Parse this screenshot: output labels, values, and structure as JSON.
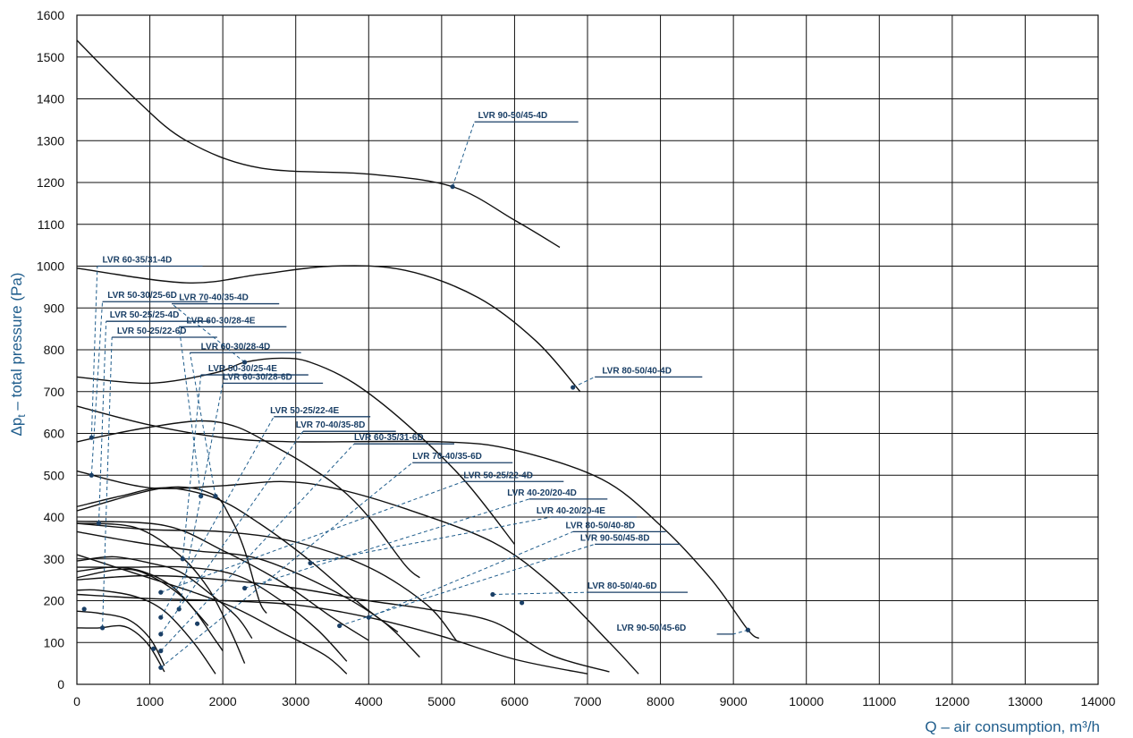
{
  "chart_data": {
    "type": "line",
    "xlabel": "Q – air consumption, m³/h",
    "ylabel_main": "Δp",
    "ylabel_sub": "t",
    "ylabel_rest": " – total pressure (Pa)",
    "xlim": [
      0,
      14000
    ],
    "ylim": [
      0,
      1600
    ],
    "x_ticks": [
      "0",
      "1000",
      "2000",
      "3000",
      "4000",
      "5000",
      "6000",
      "7000",
      "8000",
      "9000",
      "10000",
      "11000",
      "12000",
      "13000",
      "14000"
    ],
    "y_ticks": [
      "0",
      "100",
      "200",
      "300",
      "400",
      "500",
      "600",
      "700",
      "800",
      "900",
      "1000",
      "1100",
      "1200",
      "1300",
      "1400",
      "1500",
      "1600"
    ],
    "grid": true,
    "colors": {
      "curve": "#111111",
      "label": "#1a3f66",
      "leader": "#1f5d8c",
      "grid": "#111111"
    },
    "series": [
      {
        "name": "LVR 90-50/45-4D",
        "points": [
          [
            0,
            1540
          ],
          [
            800,
            1400
          ],
          [
            1500,
            1300
          ],
          [
            2500,
            1235
          ],
          [
            4000,
            1220
          ],
          [
            5150,
            1190
          ],
          [
            6000,
            1110
          ],
          [
            6620,
            1045
          ]
        ]
      },
      {
        "name": "LVR 80-50/40-4D",
        "points": [
          [
            0,
            995
          ],
          [
            1500,
            960
          ],
          [
            2500,
            980
          ],
          [
            3500,
            1000
          ],
          [
            4500,
            990
          ],
          [
            5500,
            925
          ],
          [
            6300,
            820
          ],
          [
            6900,
            700
          ]
        ]
      },
      {
        "name": "LVR 70-40/35-4D",
        "points": [
          [
            0,
            735
          ],
          [
            1000,
            720
          ],
          [
            1900,
            745
          ],
          [
            2300,
            770
          ],
          [
            2800,
            780
          ],
          [
            3200,
            770
          ],
          [
            3800,
            720
          ],
          [
            4500,
            625
          ],
          [
            5300,
            490
          ],
          [
            6000,
            335
          ]
        ]
      },
      {
        "name": "LVR 60-35/31-4D",
        "points": [
          [
            0,
            580
          ],
          [
            400,
            595
          ],
          [
            1000,
            615
          ],
          [
            1700,
            630
          ],
          [
            2200,
            615
          ],
          [
            2700,
            570
          ],
          [
            3100,
            530
          ],
          [
            3600,
            470
          ],
          [
            4000,
            400
          ],
          [
            4500,
            285
          ],
          [
            4700,
            255
          ]
        ]
      },
      {
        "name": "LVR 60-35/31-6D",
        "points": [
          [
            0,
            665
          ],
          [
            1000,
            620
          ],
          [
            2000,
            590
          ],
          [
            3000,
            580
          ],
          [
            5000,
            580
          ],
          [
            6000,
            560
          ],
          [
            7200,
            490
          ],
          [
            8000,
            380
          ],
          [
            8700,
            250
          ],
          [
            9200,
            130
          ],
          [
            9350,
            110
          ]
        ]
      },
      {
        "name": "LVR 70-40/35-6D",
        "points": [
          [
            0,
            510
          ],
          [
            1000,
            470
          ],
          [
            2000,
            475
          ],
          [
            2800,
            485
          ],
          [
            3500,
            470
          ],
          [
            4500,
            420
          ],
          [
            5700,
            340
          ],
          [
            6500,
            240
          ],
          [
            7300,
            100
          ],
          [
            7700,
            25
          ]
        ]
      },
      {
        "name": "LVR 50-30/25-6D",
        "points": [
          [
            0,
            415
          ],
          [
            1200,
            470
          ],
          [
            1850,
            455
          ],
          [
            2100,
            400
          ],
          [
            2300,
            320
          ],
          [
            2500,
            200
          ],
          [
            2600,
            170
          ]
        ]
      },
      {
        "name": "LVR 50-30/25-4E",
        "points": [
          [
            0,
            425
          ],
          [
            600,
            450
          ],
          [
            1200,
            470
          ],
          [
            1900,
            445
          ],
          [
            2500,
            385
          ],
          [
            3200,
            295
          ],
          [
            3900,
            190
          ],
          [
            4400,
            125
          ]
        ]
      },
      {
        "name": "LVR 50-25/25-4D",
        "points": [
          [
            0,
            385
          ],
          [
            800,
            375
          ],
          [
            1400,
            310
          ],
          [
            1800,
            230
          ],
          [
            2100,
            130
          ],
          [
            2300,
            50
          ]
        ]
      },
      {
        "name": "LVR 50-25/22-6D",
        "points": [
          [
            0,
            135
          ],
          [
            300,
            135
          ],
          [
            600,
            140
          ],
          [
            800,
            125
          ],
          [
            1000,
            90
          ],
          [
            1200,
            30
          ]
        ]
      },
      {
        "name": "LVR 60-30/28-4E",
        "points": [
          [
            0,
            390
          ],
          [
            1200,
            380
          ],
          [
            2000,
            320
          ],
          [
            2800,
            245
          ],
          [
            3500,
            160
          ],
          [
            4000,
            105
          ]
        ]
      },
      {
        "name": "LVR 60-30/28-4D",
        "points": [
          [
            0,
            385
          ],
          [
            1000,
            370
          ],
          [
            2000,
            365
          ],
          [
            3000,
            340
          ],
          [
            4000,
            280
          ],
          [
            4800,
            190
          ],
          [
            5200,
            105
          ]
        ]
      },
      {
        "name": "LVR 60-30/28-6D",
        "points": [
          [
            0,
            295
          ],
          [
            500,
            305
          ],
          [
            1000,
            290
          ],
          [
            1400,
            270
          ],
          [
            1800,
            220
          ],
          [
            2200,
            160
          ],
          [
            2400,
            110
          ]
        ]
      },
      {
        "name": "LVR 50-25/22-4E",
        "points": [
          [
            0,
            310
          ],
          [
            800,
            265
          ],
          [
            1600,
            220
          ],
          [
            2200,
            180
          ],
          [
            2800,
            125
          ],
          [
            3400,
            70
          ],
          [
            3700,
            25
          ]
        ]
      },
      {
        "name": "LVR 70-40/35-8D",
        "points": [
          [
            0,
            365
          ],
          [
            800,
            340
          ],
          [
            1600,
            320
          ],
          [
            2500,
            300
          ],
          [
            3500,
            225
          ],
          [
            4200,
            150
          ],
          [
            4700,
            65
          ]
        ]
      },
      {
        "name": "LVR 50-25/22-4D",
        "points": [
          [
            0,
            280
          ],
          [
            800,
            280
          ],
          [
            1500,
            280
          ],
          [
            2200,
            260
          ],
          [
            2800,
            200
          ],
          [
            3300,
            130
          ],
          [
            3700,
            55
          ]
        ]
      },
      {
        "name": "LVR 40-20/20-4D",
        "points": [
          [
            0,
            270
          ],
          [
            500,
            280
          ],
          [
            900,
            270
          ],
          [
            1300,
            235
          ],
          [
            1600,
            180
          ],
          [
            1800,
            140
          ]
        ]
      },
      {
        "name": "LVR 40-20/20-4E",
        "points": [
          [
            0,
            255
          ],
          [
            600,
            275
          ],
          [
            1000,
            260
          ],
          [
            1500,
            200
          ],
          [
            1900,
            105
          ],
          [
            2000,
            80
          ]
        ]
      },
      {
        "name": "LVR 80-50/40-8D",
        "points": [
          [
            0,
            215
          ],
          [
            1000,
            205
          ],
          [
            2000,
            200
          ],
          [
            3000,
            190
          ],
          [
            4000,
            160
          ],
          [
            5000,
            115
          ],
          [
            6000,
            60
          ],
          [
            7000,
            25
          ]
        ]
      },
      {
        "name": "LVR 90-50/45-8D",
        "points": [
          [
            0,
            250
          ],
          [
            1000,
            260
          ],
          [
            2000,
            250
          ],
          [
            3000,
            230
          ],
          [
            4000,
            200
          ],
          [
            4800,
            180
          ],
          [
            5700,
            150
          ],
          [
            6500,
            70
          ],
          [
            7300,
            30
          ]
        ]
      },
      {
        "name": "LVR 80-50/40-6D",
        "points": [
          [
            0,
            225
          ],
          [
            300,
            225
          ],
          [
            800,
            210
          ],
          [
            1200,
            175
          ],
          [
            1600,
            100
          ],
          [
            1900,
            25
          ]
        ]
      },
      {
        "name": "LVR 90-50/45-6D",
        "points": [
          [
            0,
            175
          ],
          [
            300,
            170
          ],
          [
            700,
            155
          ],
          [
            1000,
            110
          ],
          [
            1200,
            45
          ]
        ]
      }
    ],
    "annotations": [
      {
        "text": "LVR 90-50/45-4D",
        "line_y": 1345,
        "x1": 5400,
        "x2": 7000,
        "text_x": 5500,
        "anchor": [
          5150,
          1190
        ],
        "elbow": [
          5450,
          1345
        ]
      },
      {
        "text": "LVR 60-35/31-4D",
        "line_y": 1000,
        "x1": 2800,
        "x2": 3000,
        "text_x": 350,
        "anchor": [
          200,
          590
        ],
        "elbow": [
          280,
          1000
        ]
      },
      {
        "text": "LVR 50-30/25-6D",
        "line_y": 915,
        "x1": 2900,
        "x2": 3000,
        "text_x": 420,
        "anchor": [
          200,
          500
        ],
        "elbow": [
          350,
          915
        ]
      },
      {
        "text": "LVR 50-25/25-4D",
        "line_y": 868,
        "x1": 2900,
        "x2": 3000,
        "text_x": 450,
        "anchor": [
          300,
          385
        ],
        "elbow": [
          400,
          868
        ]
      },
      {
        "text": "LVR 50-25/22-6D",
        "line_y": 830,
        "x1": 2900,
        "x2": 3000,
        "text_x": 550,
        "anchor": [
          350,
          135
        ],
        "elbow": [
          480,
          830
        ]
      },
      {
        "text": "LVR 70-40/35-4D",
        "line_y": 910,
        "x1": 4000,
        "x2": 4000,
        "text_x": 1400,
        "anchor": [
          2300,
          770
        ],
        "elbow": [
          1300,
          910
        ]
      },
      {
        "text": "LVR 60-30/28-4E",
        "line_y": 855,
        "x1": 4000,
        "x2": 4200,
        "text_x": 1500,
        "anchor": [
          1700,
          450
        ],
        "elbow": [
          1400,
          855
        ]
      },
      {
        "text": "LVR 60-30/28-4D",
        "line_y": 793,
        "x1": 4000,
        "x2": 4400,
        "text_x": 1700,
        "anchor": [
          1900,
          450
        ],
        "elbow": [
          1550,
          793
        ]
      },
      {
        "text": "LVR 50-30/25-4E",
        "line_y": 740,
        "x1": 4000,
        "x2": 4700,
        "text_x": 1800,
        "anchor": [
          1450,
          300
        ],
        "elbow": [
          1700,
          740
        ]
      },
      {
        "text": "LVR 60-30/28-6D",
        "line_y": 720,
        "x1": 4000,
        "x2": 5000,
        "text_x": 2000,
        "anchor": [
          1400,
          180
        ],
        "elbow": [
          2000,
          720
        ]
      },
      {
        "text": "LVR 50-25/22-4E",
        "line_y": 640,
        "x1": 4800,
        "x2": 5500,
        "text_x": 2650,
        "anchor": [
          1150,
          160
        ],
        "elbow": [
          2700,
          640
        ]
      },
      {
        "text": "LVR 70-40/35-8D",
        "line_y": 605,
        "x1": 5200,
        "x2": 5700,
        "text_x": 3000,
        "anchor": [
          1150,
          120
        ],
        "elbow": [
          3100,
          605
        ]
      },
      {
        "text": "LVR 60-35/31-6D",
        "line_y": 575,
        "x1": 5500,
        "x2": 6300,
        "text_x": 3800,
        "anchor": [
          1150,
          80
        ],
        "elbow": [
          3800,
          575
        ]
      },
      {
        "text": "LVR 70-40/35-6D",
        "line_y": 530,
        "x1": 5400,
        "x2": 6700,
        "text_x": 4600,
        "anchor": [
          1150,
          40
        ],
        "elbow": [
          4600,
          530
        ]
      },
      {
        "text": "LVR 50-25/22-4D",
        "line_y": 485,
        "x1": 5600,
        "x2": 7400,
        "text_x": 5300,
        "anchor": [
          1150,
          220
        ],
        "elbow": [
          5300,
          485
        ]
      },
      {
        "text": "LVR 40-20/20-4D",
        "line_y": 443,
        "x1": 5900,
        "x2": 7600,
        "text_x": 5900,
        "anchor": [
          2300,
          230
        ],
        "elbow": [
          6200,
          443
        ]
      },
      {
        "text": "LVR 40-20/20-4E",
        "line_y": 400,
        "x1": 6200,
        "x2": 8000,
        "text_x": 6300,
        "anchor": [
          3200,
          290
        ],
        "elbow": [
          6500,
          400
        ]
      },
      {
        "text": "LVR 80-50/40-8D",
        "line_y": 365,
        "x1": 6800,
        "x2": 8200,
        "text_x": 6700,
        "anchor": [
          4000,
          160
        ],
        "elbow": [
          6800,
          365
        ]
      },
      {
        "text": "LVR 90-50/45-8D",
        "line_y": 335,
        "x1": 7100,
        "x2": 8600,
        "text_x": 6900,
        "anchor": [
          3600,
          140
        ],
        "elbow": [
          7100,
          335
        ]
      },
      {
        "text": "LVR 80-50/40-6D",
        "line_y": 220,
        "x1": 7000,
        "x2": 8000,
        "text_x": 7000,
        "anchor": [
          5700,
          215
        ],
        "elbow": [
          7000,
          220
        ]
      },
      {
        "text": "LVR 90-50/45-6D",
        "line_y": 120,
        "x1": 7300,
        "x2": 8800,
        "text_x": 7400,
        "anchor": [
          9200,
          130
        ],
        "elbow": [
          9000,
          120
        ]
      },
      {
        "text": "LVR 80-50/40-4D",
        "line_y": 735,
        "x1": 7100,
        "x2": 8300,
        "text_x": 7200,
        "anchor": [
          6800,
          710
        ],
        "elbow": [
          7100,
          735
        ]
      }
    ],
    "extra_points": [
      [
        6100,
        195
      ],
      [
        100,
        180
      ],
      [
        1650,
        145
      ],
      [
        1050,
        85
      ]
    ]
  }
}
